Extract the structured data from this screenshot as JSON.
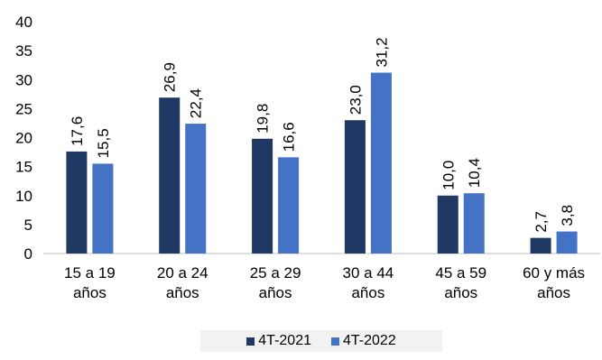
{
  "chart_data": {
    "type": "bar",
    "categories": [
      [
        "15 a 19",
        "años"
      ],
      [
        "20 a 24",
        "años"
      ],
      [
        "25 a 29",
        "años"
      ],
      [
        "30 a 44",
        "años"
      ],
      [
        "45 a 59",
        "años"
      ],
      [
        "60 y más",
        "años"
      ]
    ],
    "series": [
      {
        "name": "4T-2021",
        "values": [
          17.6,
          26.9,
          19.8,
          23.0,
          10.0,
          2.7
        ],
        "labels": [
          "17,6",
          "26,9",
          "19,8",
          "23,0",
          "10,0",
          "2,7"
        ],
        "color": "#203864"
      },
      {
        "name": "4T-2022",
        "values": [
          15.5,
          22.4,
          16.6,
          31.2,
          10.4,
          3.8
        ],
        "labels": [
          "15,5",
          "22,4",
          "16,6",
          "31,2",
          "10,4",
          "3,8"
        ],
        "color": "#4472c4"
      }
    ],
    "yticks": [
      "0",
      "5",
      "10",
      "15",
      "20",
      "25",
      "30",
      "35",
      "40"
    ],
    "ylim": [
      0,
      40
    ],
    "grid": false,
    "legend_position": "bottom"
  }
}
